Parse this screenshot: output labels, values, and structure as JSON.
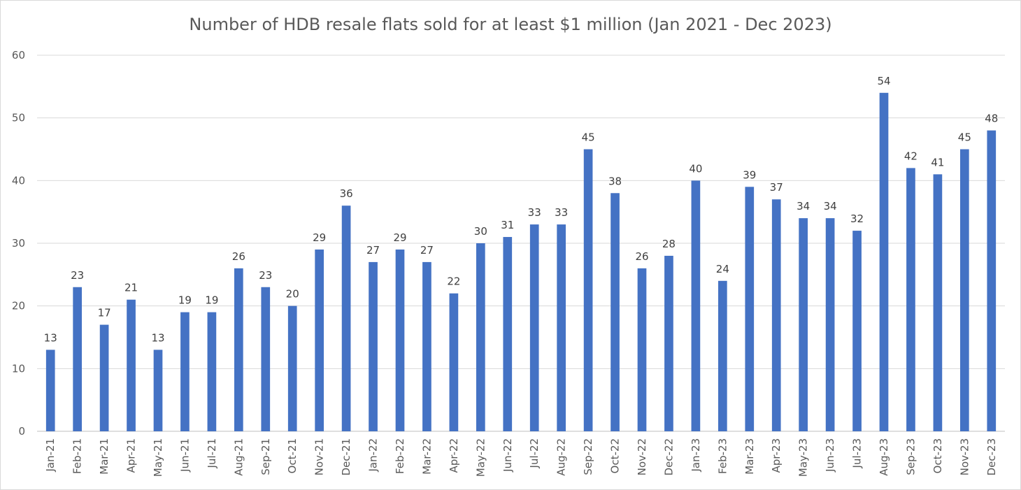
{
  "chart_data": {
    "type": "bar",
    "title": "Number of HDB resale flats sold for at least $1 million (Jan 2021 - Dec 2023)",
    "xlabel": "",
    "ylabel": "",
    "ylim": [
      0,
      60
    ],
    "yticks": [
      0,
      10,
      20,
      30,
      40,
      50,
      60
    ],
    "grid": true,
    "legend": "none",
    "bar_color": "#4472c4",
    "data_labels": true,
    "categories": [
      "Jan-21",
      "Feb-21",
      "Mar-21",
      "Apr-21",
      "May-21",
      "Jun-21",
      "Jul-21",
      "Aug-21",
      "Sep-21",
      "Oct-21",
      "Nov-21",
      "Dec-21",
      "Jan-22",
      "Feb-22",
      "Mar-22",
      "Apr-22",
      "May-22",
      "Jun-22",
      "Jul-22",
      "Aug-22",
      "Sep-22",
      "Oct-22",
      "Nov-22",
      "Dec-22",
      "Jan-23",
      "Feb-23",
      "Mar-23",
      "Apr-23",
      "May-23",
      "Jun-23",
      "Jul-23",
      "Aug-23",
      "Sep-23",
      "Oct-23",
      "Nov-23",
      "Dec-23"
    ],
    "values": [
      13,
      23,
      17,
      21,
      13,
      19,
      19,
      26,
      23,
      20,
      29,
      36,
      27,
      29,
      27,
      22,
      30,
      31,
      33,
      33,
      45,
      38,
      26,
      28,
      40,
      24,
      39,
      37,
      34,
      34,
      32,
      54,
      42,
      41,
      45,
      48
    ]
  }
}
